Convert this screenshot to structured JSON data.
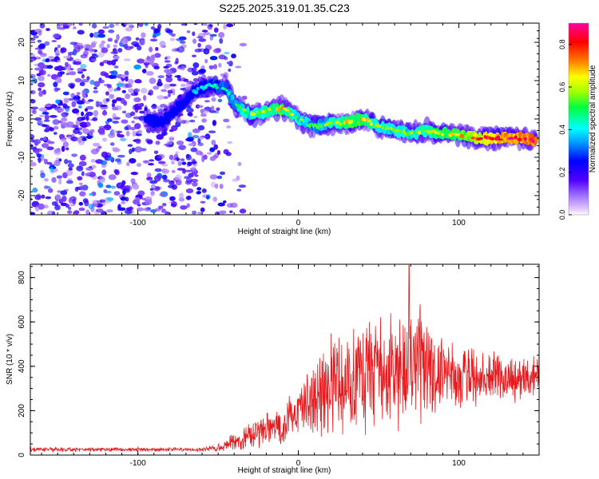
{
  "title": "S225.2025.319.01.35.C23",
  "chart_data": [
    {
      "type": "heatmap",
      "title": "S225.2025.319.01.35.C23",
      "xlabel": "Height of straight line (km)",
      "ylabel": "Frequency (Hz)",
      "xlim": [
        -167,
        150
      ],
      "ylim": [
        -25,
        25
      ],
      "xticks": [
        -100,
        0,
        100
      ],
      "yticks": [
        -20,
        -10,
        0,
        10,
        20
      ],
      "colorbar": {
        "label": "Normalized spectral amplitude",
        "range": [
          0,
          0.9
        ],
        "ticks": [
          0.0,
          0.2,
          0.4,
          0.6,
          0.8
        ],
        "tick_labels": [
          "0.0",
          "0.2",
          "0.4",
          "0.6",
          "0.8"
        ]
      },
      "noise_region": {
        "x_range": [
          -167,
          -50
        ],
        "y_range": [
          -25,
          25
        ],
        "amplitude": [
          0.05,
          0.25
        ]
      },
      "ridge": {
        "x": [
          -95,
          -85,
          -75,
          -65,
          -55,
          -45,
          -40,
          -30,
          -20,
          -10,
          0,
          10,
          20,
          30,
          40,
          50,
          60,
          70,
          80,
          90,
          100,
          110,
          120,
          130,
          140,
          148
        ],
        "freq": [
          0,
          -1,
          3,
          7,
          9,
          8,
          4,
          1,
          2,
          3,
          0,
          -2,
          -1,
          -1,
          0,
          -2,
          -3,
          -4,
          -3,
          -4,
          -4,
          -5,
          -5,
          -5,
          -5,
          -6
        ],
        "amplitude": [
          0.25,
          0.25,
          0.3,
          0.3,
          0.35,
          0.4,
          0.45,
          0.5,
          0.55,
          0.6,
          0.5,
          0.45,
          0.5,
          0.6,
          0.6,
          0.5,
          0.5,
          0.5,
          0.55,
          0.6,
          0.6,
          0.7,
          0.75,
          0.8,
          0.8,
          0.85
        ]
      }
    },
    {
      "type": "line",
      "xlabel": "Height of straight line (km)",
      "ylabel": "SNR (10 * v/v)",
      "xlim": [
        -167,
        150
      ],
      "ylim": [
        0,
        860
      ],
      "xticks": [
        -100,
        0,
        100
      ],
      "yticks": [
        0,
        200,
        400,
        600,
        800
      ],
      "series": [
        {
          "name": "SNR",
          "color": "#e8191c",
          "x_range": [
            -167,
            150
          ],
          "samples": 1400,
          "envelope_x": [
            -167,
            -60,
            -50,
            -40,
            -30,
            -20,
            -10,
            0,
            10,
            20,
            30,
            40,
            50,
            60,
            70,
            80,
            90,
            100,
            110,
            120,
            130,
            140,
            150
          ],
          "envelope_mean": [
            25,
            25,
            35,
            60,
            90,
            110,
            140,
            190,
            250,
            310,
            340,
            370,
            380,
            400,
            400,
            390,
            370,
            360,
            360,
            350,
            350,
            340,
            360
          ],
          "envelope_spread": [
            8,
            8,
            15,
            35,
            50,
            60,
            80,
            100,
            150,
            180,
            200,
            210,
            220,
            230,
            230,
            200,
            150,
            120,
            110,
            100,
            90,
            90,
            60
          ],
          "peak": {
            "x": 69,
            "y": 855
          }
        }
      ]
    }
  ]
}
